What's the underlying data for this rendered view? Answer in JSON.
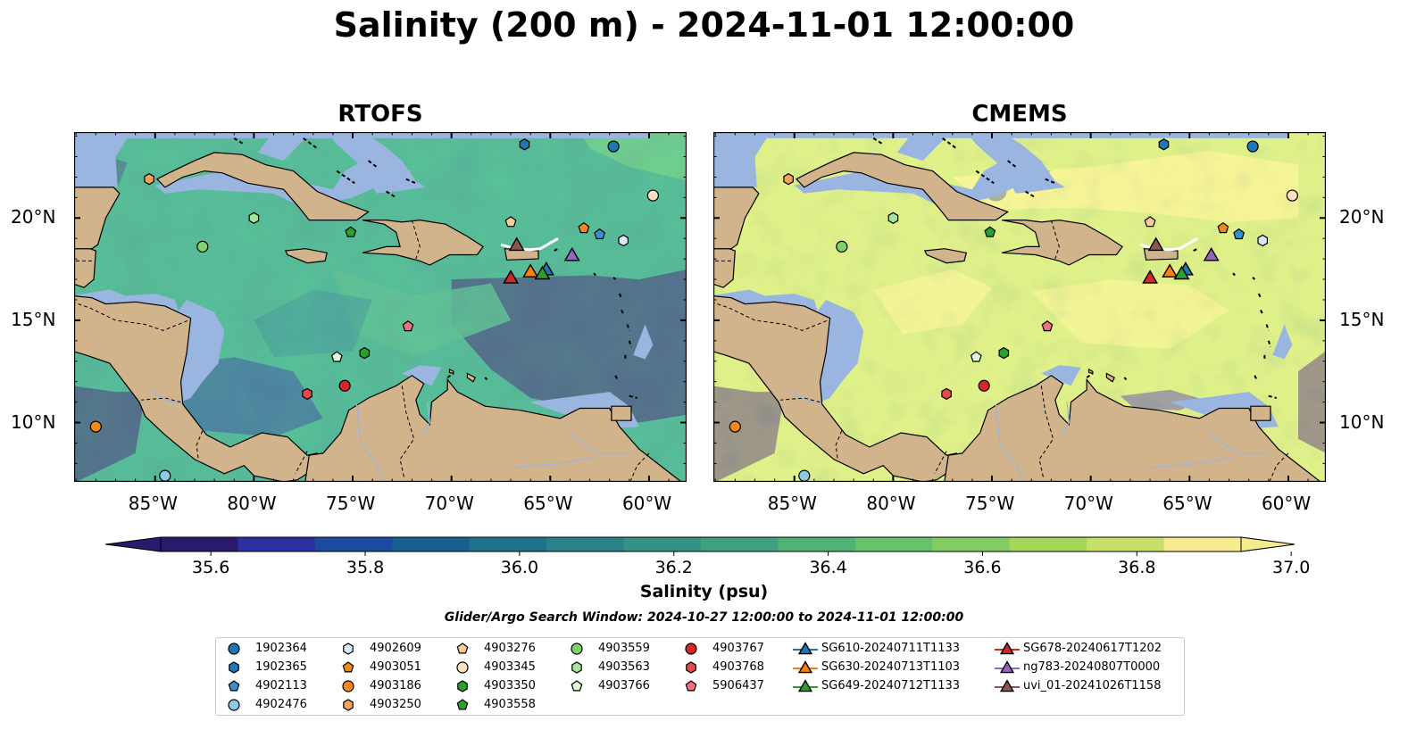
{
  "title": "Salinity (200 m) - 2024-11-01 12:00:00",
  "panels": [
    {
      "title": "RTOFS"
    },
    {
      "title": "CMEMS"
    }
  ],
  "axes": {
    "lon_ticks": [
      "85°W",
      "80°W",
      "75°W",
      "70°W",
      "65°W",
      "60°W"
    ],
    "lat_ticks": [
      "20°N",
      "15°N",
      "10°N"
    ]
  },
  "colorbar": {
    "label": "Salinity (psu)",
    "tick_labels": [
      "35.6",
      "35.8",
      "36.0",
      "36.2",
      "36.4",
      "36.6",
      "36.8",
      "37.0"
    ],
    "min": 35.6,
    "max": 37.0,
    "colors": [
      "#2a1a6e",
      "#2d2fa0",
      "#1a4b9c",
      "#17608f",
      "#1f7289",
      "#2a8187",
      "#349183",
      "#3fa07e",
      "#52b276",
      "#66c26d",
      "#83cc62",
      "#a4d75a",
      "#c8e06a",
      "#f6ec8f"
    ]
  },
  "search_window": "Glider/Argo Search Window: 2024-10-27 12:00:00 to 2024-11-01 12:00:00",
  "legend": [
    {
      "label": "1902364",
      "marker": "circle",
      "color": "#1f77b4"
    },
    {
      "label": "1902365",
      "marker": "hexagon",
      "color": "#1f77b4"
    },
    {
      "label": "4902113",
      "marker": "pentagon",
      "color": "#3a8fd0"
    },
    {
      "label": "4902476",
      "marker": "circle",
      "color": "#8ecae6"
    },
    {
      "label": "4902609",
      "marker": "hexagon",
      "color": "#d6e8f8"
    },
    {
      "label": "4903051",
      "marker": "pentagon",
      "color": "#f28a1a"
    },
    {
      "label": "4903186",
      "marker": "circle",
      "color": "#f28a1a"
    },
    {
      "label": "4903250",
      "marker": "hexagon",
      "color": "#f5a460"
    },
    {
      "label": "4903276",
      "marker": "pentagon",
      "color": "#f8cf96"
    },
    {
      "label": "4903345",
      "marker": "circle",
      "color": "#fbe0c4"
    },
    {
      "label": "4903350",
      "marker": "hexagon",
      "color": "#2ca02c"
    },
    {
      "label": "4903558",
      "marker": "pentagon",
      "color": "#2ca02c"
    },
    {
      "label": "4903559",
      "marker": "circle",
      "color": "#7ed36a"
    },
    {
      "label": "4903563",
      "marker": "hexagon",
      "color": "#a7e39a"
    },
    {
      "label": "4903766",
      "marker": "pentagon",
      "color": "#dff5d5"
    },
    {
      "label": "4903767",
      "marker": "circle",
      "color": "#d62728"
    },
    {
      "label": "4903768",
      "marker": "hexagon",
      "color": "#e04a4a"
    },
    {
      "label": "5906437",
      "marker": "pentagon",
      "color": "#f0717e"
    },
    {
      "label": "SG610-20240711T1133",
      "marker": "triangle",
      "color": "#1f77b4"
    },
    {
      "label": "SG630-20240713T1103",
      "marker": "triangle",
      "color": "#ff7f0e"
    },
    {
      "label": "SG649-20240712T1133",
      "marker": "triangle",
      "color": "#2ca02c"
    },
    {
      "label": "SG678-20240617T1202",
      "marker": "triangle",
      "color": "#d62728"
    },
    {
      "label": "ng783-20240807T0000",
      "marker": "triangle",
      "color": "#9467bd"
    },
    {
      "label": "uvi_01-20241026T1158",
      "marker": "triangle",
      "color": "#8c564b"
    }
  ],
  "markers": [
    {
      "id": "1902364",
      "lon": -61.8,
      "lat": 23.5
    },
    {
      "id": "1902365",
      "lon": -66.3,
      "lat": 23.6
    },
    {
      "id": "4902113",
      "lon": -62.5,
      "lat": 19.2
    },
    {
      "id": "4902476",
      "lon": -84.5,
      "lat": 7.4
    },
    {
      "id": "4902609",
      "lon": -61.3,
      "lat": 18.9
    },
    {
      "id": "4903051",
      "lon": -63.3,
      "lat": 19.5
    },
    {
      "id": "4903186",
      "lon": -88.0,
      "lat": 9.8
    },
    {
      "id": "4903250",
      "lon": -85.3,
      "lat": 21.9
    },
    {
      "id": "4903276",
      "lon": -67.0,
      "lat": 19.8
    },
    {
      "id": "4903345",
      "lon": -59.8,
      "lat": 21.1
    },
    {
      "id": "4903350",
      "lon": -74.4,
      "lat": 13.4
    },
    {
      "id": "4903558",
      "lon": -75.1,
      "lat": 19.3
    },
    {
      "id": "4903559",
      "lon": -82.6,
      "lat": 18.6
    },
    {
      "id": "4903563",
      "lon": -80.0,
      "lat": 20.0
    },
    {
      "id": "4903766",
      "lon": -75.8,
      "lat": 13.2
    },
    {
      "id": "4903767",
      "lon": -75.4,
      "lat": 11.8
    },
    {
      "id": "4903768",
      "lon": -77.3,
      "lat": 11.4
    },
    {
      "id": "5906437",
      "lon": -72.2,
      "lat": 14.7
    },
    {
      "id": "SG610-20240711T1133",
      "lon": -65.2,
      "lat": 17.5
    },
    {
      "id": "SG630-20240713T1103",
      "lon": -66.0,
      "lat": 17.4
    },
    {
      "id": "SG649-20240712T1133",
      "lon": -65.4,
      "lat": 17.3
    },
    {
      "id": "SG678-20240617T1202",
      "lon": -67.0,
      "lat": 17.1
    },
    {
      "id": "ng783-20240807T0000",
      "lon": -63.9,
      "lat": 18.2
    },
    {
      "id": "uvi_01-20241026T1158",
      "lon": -66.7,
      "lat": 18.7
    }
  ]
}
